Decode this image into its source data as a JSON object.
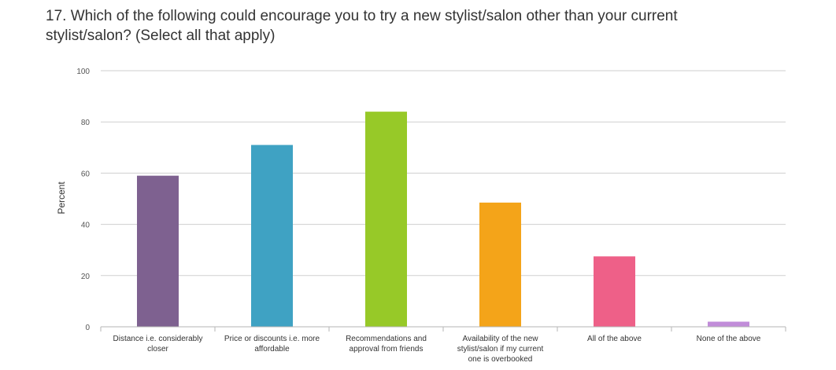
{
  "title_lines": [
    "17. Which of the following could encourage you to try a new stylist/salon other than your current",
    "stylist/salon? (Select all that apply)"
  ],
  "chart_data": {
    "type": "bar",
    "title": "17. Which of the following could encourage you to try a new stylist/salon other than your current stylist/salon? (Select all that apply)",
    "ylabel": "Percent",
    "xlabel": "",
    "ylim": [
      0,
      100
    ],
    "yticks": [
      0,
      20,
      40,
      60,
      80,
      100
    ],
    "grid": true,
    "categories": [
      [
        "Distance i.e. considerably",
        "closer"
      ],
      [
        "Price or discounts i.e. more",
        "affordable"
      ],
      [
        "Recommendations and",
        "approval from friends"
      ],
      [
        "Availability of the new",
        "stylist/salon if my current",
        "one is overbooked"
      ],
      [
        "All of the above"
      ],
      [
        "None of the above"
      ]
    ],
    "values": [
      59,
      71,
      84,
      48.5,
      27.5,
      2
    ],
    "colors": [
      "#7E6190",
      "#3FA2C3",
      "#97C928",
      "#F4A419",
      "#EE6088",
      "#C18DD9"
    ]
  }
}
